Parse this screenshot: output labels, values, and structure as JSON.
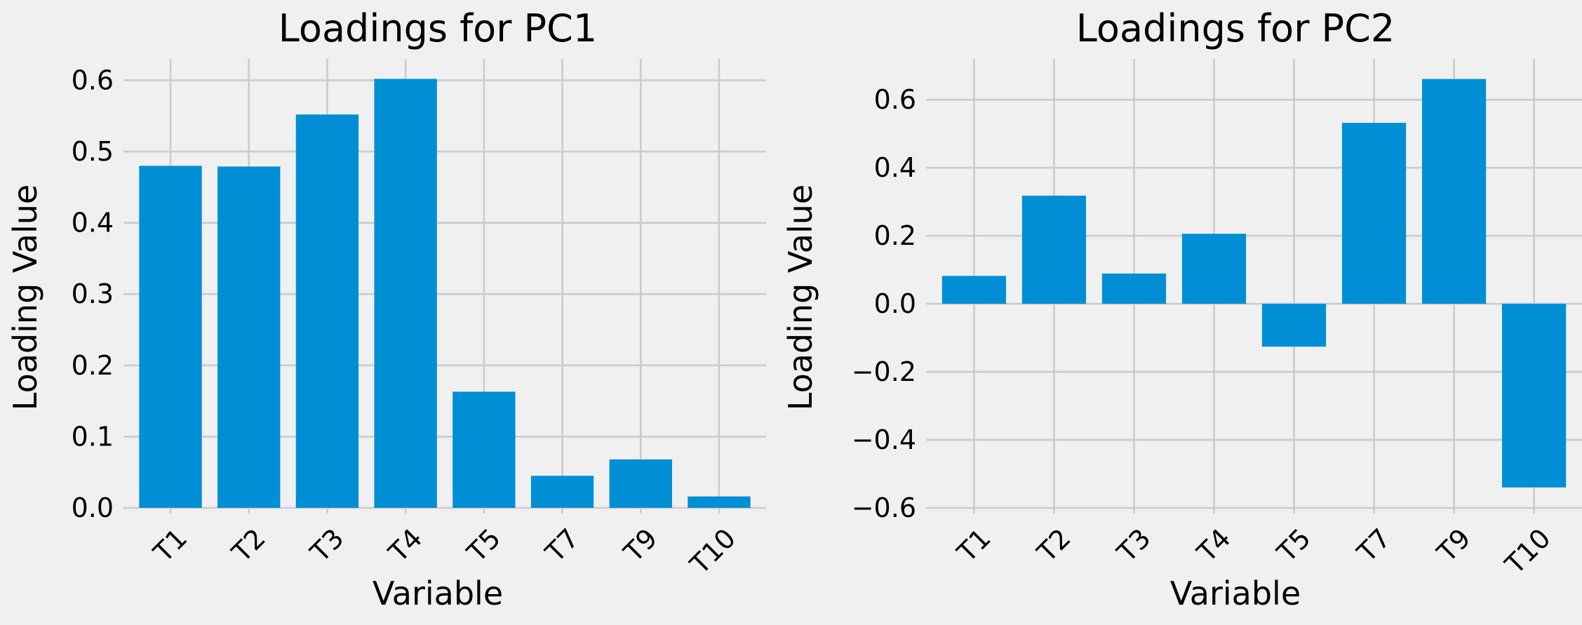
{
  "chart_data": [
    {
      "type": "bar",
      "title": "Loadings for PC1",
      "xlabel": "Variable",
      "ylabel": "Loading Value",
      "categories": [
        "T1",
        "T2",
        "T3",
        "T4",
        "T5",
        "T7",
        "T9",
        "T10"
      ],
      "values": [
        0.48,
        0.479,
        0.552,
        0.602,
        0.163,
        0.045,
        0.068,
        0.016
      ],
      "ylim": [
        0.0,
        0.63
      ],
      "yticks": [
        0.0,
        0.1,
        0.2,
        0.3,
        0.4,
        0.5,
        0.6
      ],
      "ytick_labels": [
        "0.0",
        "0.1",
        "0.2",
        "0.3",
        "0.4",
        "0.5",
        "0.6"
      ],
      "grid": true,
      "bar_color": "#008fd5"
    },
    {
      "type": "bar",
      "title": "Loadings for PC2",
      "xlabel": "Variable",
      "ylabel": "Loading Value",
      "categories": [
        "T1",
        "T2",
        "T3",
        "T4",
        "T5",
        "T7",
        "T9",
        "T10"
      ],
      "values": [
        0.082,
        0.318,
        0.089,
        0.206,
        -0.126,
        0.532,
        0.661,
        -0.54
      ],
      "ylim": [
        -0.6,
        0.72
      ],
      "yticks": [
        -0.6,
        -0.4,
        -0.2,
        0.0,
        0.2,
        0.4,
        0.6
      ],
      "ytick_labels": [
        "−0.6",
        "−0.4",
        "−0.2",
        "0.0",
        "0.2",
        "0.4",
        "0.6"
      ],
      "grid": true,
      "bar_color": "#008fd5"
    }
  ]
}
